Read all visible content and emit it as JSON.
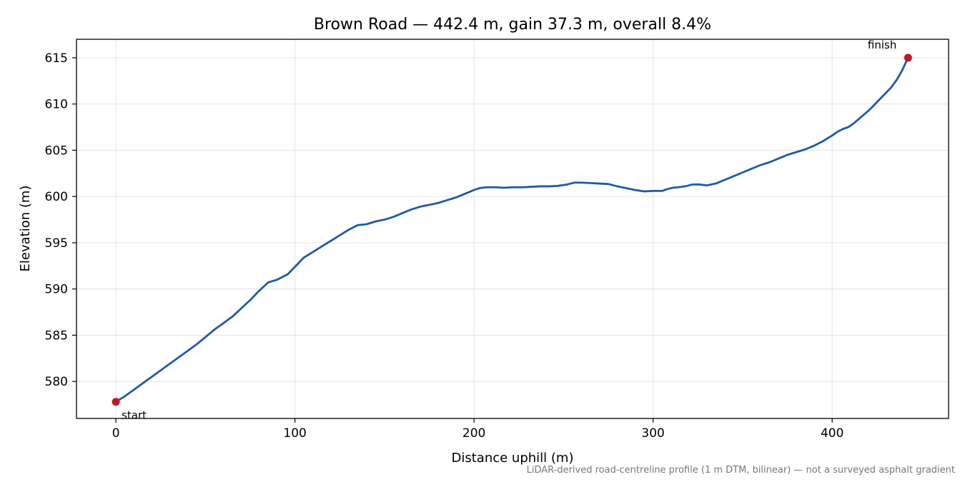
{
  "chart_data": {
    "type": "line",
    "title": "Brown Road — 442.4 m, gain 37.3 m, overall 8.4%",
    "xlabel": "Distance uphill (m)",
    "ylabel": "Elevation (m)",
    "xlim": [
      -22,
      465
    ],
    "ylim": [
      576,
      617
    ],
    "xticks": [
      0,
      100,
      200,
      300,
      400
    ],
    "yticks": [
      580,
      585,
      590,
      595,
      600,
      605,
      610,
      615
    ],
    "grid": true,
    "line_color": "#1f5aa6",
    "marker_color": "#c0182a",
    "series": [
      {
        "x": [
          0,
          5,
          10,
          15,
          20,
          25,
          30,
          35,
          40,
          45,
          50,
          55,
          60,
          65,
          70,
          75,
          80,
          85,
          90,
          93,
          96,
          100,
          105,
          110,
          115,
          120,
          125,
          130,
          135,
          140,
          145,
          150,
          155,
          160,
          165,
          170,
          175,
          180,
          185,
          190,
          195,
          200,
          203,
          207,
          212,
          217,
          222,
          227,
          232,
          237,
          242,
          247,
          252,
          256,
          260,
          265,
          270,
          275,
          280,
          285,
          290,
          295,
          300,
          305,
          308,
          311,
          314,
          318,
          322,
          326,
          330,
          335,
          340,
          345,
          350,
          355,
          360,
          365,
          370,
          375,
          380,
          385,
          390,
          395,
          400,
          403,
          406,
          409,
          412,
          415,
          418,
          421,
          424,
          427,
          430,
          433,
          436,
          439,
          442.4
        ],
        "y": [
          577.8,
          578.4,
          579.1,
          579.8,
          580.5,
          581.2,
          581.9,
          582.6,
          583.3,
          584.0,
          584.8,
          585.6,
          586.3,
          587.0,
          587.9,
          588.8,
          589.8,
          590.7,
          591.0,
          591.3,
          591.6,
          592.4,
          593.4,
          594.0,
          594.6,
          595.2,
          595.8,
          596.4,
          596.9,
          597.0,
          597.3,
          597.5,
          597.8,
          598.2,
          598.6,
          598.9,
          599.1,
          599.3,
          599.6,
          599.9,
          600.3,
          600.7,
          600.9,
          601.0,
          601.0,
          600.95,
          601.0,
          601.0,
          601.05,
          601.1,
          601.1,
          601.15,
          601.3,
          601.5,
          601.5,
          601.45,
          601.4,
          601.35,
          601.1,
          600.9,
          600.7,
          600.55,
          600.6,
          600.6,
          600.8,
          600.95,
          601.0,
          601.1,
          601.3,
          601.3,
          601.2,
          601.4,
          601.8,
          602.2,
          602.6,
          603.0,
          603.4,
          603.7,
          604.1,
          604.5,
          604.8,
          605.1,
          605.5,
          606.0,
          606.6,
          607.0,
          607.3,
          607.5,
          607.9,
          608.4,
          608.9,
          609.4,
          610.0,
          610.6,
          611.2,
          611.8,
          612.6,
          613.6,
          615.0
        ]
      }
    ],
    "markers": [
      {
        "label": "start",
        "x": 0,
        "y": 577.8
      },
      {
        "label": "finish",
        "x": 442.4,
        "y": 615.0
      }
    ],
    "footnote": "LiDAR-derived road-centreline profile (1 m DTM, bilinear) — not a surveyed asphalt gradient"
  }
}
